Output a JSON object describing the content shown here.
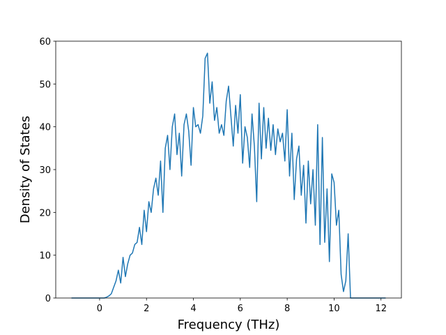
{
  "chart_data": {
    "type": "line",
    "x_label": "Frequency (THz)",
    "y_label": "Density of States",
    "x": [
      -1.2,
      0.2,
      0.3,
      0.4,
      0.5,
      0.6,
      0.7,
      0.8,
      0.9,
      1.0,
      1.1,
      1.2,
      1.3,
      1.4,
      1.5,
      1.6,
      1.7,
      1.8,
      1.9,
      2.0,
      2.1,
      2.2,
      2.3,
      2.4,
      2.5,
      2.6,
      2.7,
      2.8,
      2.9,
      3.0,
      3.1,
      3.2,
      3.3,
      3.4,
      3.5,
      3.6,
      3.7,
      3.8,
      3.9,
      4.0,
      4.1,
      4.2,
      4.3,
      4.4,
      4.5,
      4.6,
      4.7,
      4.8,
      4.9,
      5.0,
      5.1,
      5.2,
      5.3,
      5.4,
      5.5,
      5.6,
      5.7,
      5.8,
      5.9,
      6.0,
      6.1,
      6.2,
      6.3,
      6.4,
      6.5,
      6.6,
      6.7,
      6.8,
      6.9,
      7.0,
      7.1,
      7.2,
      7.3,
      7.4,
      7.5,
      7.6,
      7.7,
      7.8,
      7.9,
      8.0,
      8.1,
      8.2,
      8.3,
      8.4,
      8.5,
      8.6,
      8.7,
      8.8,
      8.9,
      9.0,
      9.1,
      9.2,
      9.3,
      9.4,
      9.5,
      9.6,
      9.7,
      9.8,
      9.9,
      10.0,
      10.1,
      10.2,
      10.3,
      10.4,
      10.5,
      10.6,
      10.7,
      12.2
    ],
    "series": [
      {
        "color": "#1f77b4",
        "values": [
          0,
          0,
          0.2,
          0.5,
          1,
          2.5,
          4,
          6.5,
          3.5,
          9.5,
          5,
          8,
          10,
          10.5,
          12.5,
          13,
          16.5,
          12.5,
          20.5,
          15.5,
          22.5,
          20,
          25.5,
          28,
          24,
          32,
          20,
          35,
          38,
          30,
          40,
          43,
          33.5,
          38.5,
          28.5,
          40.5,
          43,
          39,
          31,
          44.5,
          40,
          40.5,
          38.5,
          42.5,
          56,
          57.2,
          45.5,
          50.5,
          41.5,
          44.5,
          38.5,
          40.5,
          38,
          46,
          49.5,
          42.5,
          35.5,
          45,
          38.5,
          47.5,
          31.5,
          40,
          37.5,
          30.5,
          43,
          35.5,
          22.5,
          45.5,
          32.5,
          44.5,
          35,
          42,
          34.5,
          40.5,
          33.5,
          39.5,
          36.5,
          38.5,
          32,
          44,
          28.5,
          38.5,
          23,
          32.5,
          35.5,
          24,
          31,
          17.5,
          32,
          22,
          30,
          17,
          40.5,
          12.5,
          37.5,
          13,
          25.5,
          8.5,
          29,
          27,
          17,
          20.5,
          5.5,
          1.5,
          4,
          15,
          0,
          0
        ]
      }
    ],
    "xlim": [
      -1.87,
      12.87
    ],
    "ylim": [
      0,
      60
    ],
    "xticks": [
      0,
      2,
      4,
      6,
      8,
      10,
      12
    ],
    "yticks": [
      0,
      10,
      20,
      30,
      40,
      50,
      60
    ]
  }
}
